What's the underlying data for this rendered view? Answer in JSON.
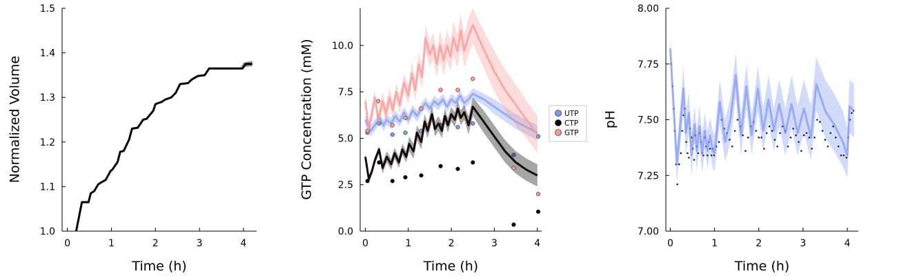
{
  "chart_data": [
    {
      "id": "volume",
      "type": "line",
      "title": "",
      "xlabel": "Time (h)",
      "ylabel": "Normalized Volume",
      "xlim": [
        -0.12,
        4.3
      ],
      "ylim": [
        1.0,
        1.5
      ],
      "xticks": [
        0,
        1,
        2,
        3,
        4
      ],
      "yticks": [
        1.0,
        1.1,
        1.2,
        1.3,
        1.4,
        1.5
      ],
      "ytick_labels": [
        "1.0",
        "1.1",
        "1.2",
        "1.3",
        "1.4",
        "1.5"
      ],
      "grid": false,
      "colors": {
        "line": "#000000",
        "band": "#7f7f7f"
      },
      "series": [
        {
          "kind": "line",
          "x": [
            0.0,
            0.2,
            0.33,
            0.48,
            0.53,
            0.61,
            0.7,
            0.78,
            0.87,
            0.98,
            1.02,
            1.14,
            1.2,
            1.28,
            1.4,
            1.47,
            1.6,
            1.72,
            1.8,
            1.95,
            2.0,
            2.14,
            2.22,
            2.36,
            2.46,
            2.56,
            2.74,
            2.82,
            2.96,
            3.12,
            3.22,
            3.42,
            3.62,
            3.82,
            3.98,
            4.05,
            4.2
          ],
          "y": [
            0.98,
            1.0,
            1.065,
            1.065,
            1.085,
            1.09,
            1.105,
            1.11,
            1.115,
            1.135,
            1.138,
            1.155,
            1.178,
            1.18,
            1.205,
            1.23,
            1.232,
            1.25,
            1.252,
            1.27,
            1.285,
            1.29,
            1.295,
            1.3,
            1.31,
            1.33,
            1.332,
            1.34,
            1.348,
            1.35,
            1.365,
            1.365,
            1.365,
            1.365,
            1.365,
            1.375,
            1.375
          ],
          "band_x": [
            3.92,
            4.0,
            4.2
          ],
          "band_lower": [
            1.365,
            1.368,
            1.37
          ],
          "band_upper": [
            1.365,
            1.378,
            1.382
          ]
        }
      ]
    },
    {
      "id": "concentration",
      "type": "line",
      "title": "",
      "xlabel": "Time (h)",
      "ylabel": "GTP Concentration (mM)",
      "xlim": [
        -0.12,
        4.1
      ],
      "ylim": [
        0.0,
        12.0
      ],
      "xticks": [
        0,
        1,
        2,
        3,
        4
      ],
      "yticks": [
        0.0,
        2.5,
        5.0,
        7.5,
        10.0
      ],
      "ytick_labels": [
        "0.0",
        "2.5",
        "5.0",
        "7.5",
        "10.0"
      ],
      "grid": false,
      "legend": {
        "position": "right",
        "entries": [
          "UTP",
          "CTP",
          "GTP"
        ]
      },
      "colors": {
        "UTP": "#8097f0",
        "CTP": "#000000",
        "GTP": "#f59a9a"
      },
      "series": [
        {
          "name": "UTP",
          "kind": "line",
          "x": [
            0.0,
            0.12,
            0.25,
            0.33,
            0.42,
            0.5,
            0.6,
            0.7,
            0.8,
            0.9,
            1.0,
            1.1,
            1.2,
            1.3,
            1.4,
            1.5,
            1.6,
            1.7,
            1.8,
            1.9,
            2.0,
            2.1,
            2.2,
            2.3,
            2.4,
            2.5,
            2.75,
            3.0,
            3.25,
            3.5,
            3.75,
            4.0
          ],
          "y": [
            6.0,
            5.4,
            5.8,
            6.1,
            5.7,
            6.0,
            5.8,
            6.2,
            5.9,
            6.4,
            6.0,
            6.5,
            6.2,
            6.6,
            6.9,
            6.6,
            7.0,
            6.8,
            7.1,
            6.7,
            7.1,
            6.9,
            7.3,
            6.9,
            7.1,
            7.4,
            7.1,
            6.7,
            6.3,
            5.9,
            5.6,
            5.3
          ],
          "band_lower": [
            5.7,
            5.1,
            5.5,
            5.8,
            5.4,
            5.7,
            5.5,
            5.9,
            5.6,
            6.1,
            5.7,
            6.2,
            5.9,
            6.3,
            6.6,
            6.3,
            6.7,
            6.5,
            6.8,
            6.4,
            6.8,
            6.6,
            7.0,
            6.6,
            6.8,
            7.1,
            6.8,
            6.3,
            5.9,
            5.5,
            5.2,
            4.9
          ],
          "band_upper": [
            6.3,
            5.7,
            6.1,
            6.4,
            6.0,
            6.3,
            6.1,
            6.5,
            6.2,
            6.7,
            6.3,
            6.8,
            6.5,
            6.9,
            7.2,
            6.9,
            7.3,
            7.1,
            7.4,
            7.0,
            7.4,
            7.2,
            7.6,
            7.2,
            7.4,
            7.7,
            7.4,
            7.1,
            6.7,
            6.3,
            6.0,
            5.7
          ],
          "points_x": [
            0.05,
            0.32,
            0.63,
            0.93,
            1.3,
            1.75,
            2.15,
            2.5,
            3.45,
            4.02
          ],
          "points_y": [
            5.3,
            5.8,
            5.2,
            5.3,
            5.4,
            5.7,
            5.6,
            5.8,
            4.1,
            5.1
          ]
        },
        {
          "name": "CTP",
          "kind": "line",
          "x": [
            0.0,
            0.08,
            0.15,
            0.22,
            0.32,
            0.4,
            0.5,
            0.6,
            0.68,
            0.78,
            0.86,
            0.95,
            1.02,
            1.12,
            1.2,
            1.3,
            1.38,
            1.45,
            1.55,
            1.62,
            1.7,
            1.78,
            1.85,
            1.92,
            2.0,
            2.08,
            2.15,
            2.22,
            2.3,
            2.4,
            2.5,
            2.75,
            3.0,
            3.25,
            3.5,
            3.75,
            4.0
          ],
          "y": [
            4.0,
            2.8,
            3.2,
            3.8,
            4.4,
            3.4,
            4.0,
            3.6,
            4.2,
            3.7,
            4.4,
            4.0,
            4.7,
            4.3,
            5.3,
            4.8,
            5.9,
            5.4,
            6.3,
            5.5,
            5.8,
            5.4,
            6.2,
            5.7,
            6.3,
            6.0,
            6.6,
            6.1,
            6.4,
            5.7,
            6.7,
            5.9,
            5.1,
            4.3,
            3.7,
            3.3,
            3.0
          ],
          "band_lower": [
            3.8,
            2.6,
            3.0,
            3.6,
            4.2,
            3.1,
            3.7,
            3.3,
            3.9,
            3.4,
            4.1,
            3.7,
            4.3,
            3.9,
            4.9,
            4.4,
            5.5,
            5.0,
            5.9,
            5.1,
            5.4,
            5.0,
            5.8,
            5.3,
            5.9,
            5.6,
            6.2,
            5.7,
            6.0,
            5.2,
            6.2,
            5.3,
            4.5,
            3.7,
            3.1,
            2.7,
            2.4
          ],
          "band_upper": [
            4.2,
            3.0,
            3.4,
            4.0,
            4.6,
            3.7,
            4.3,
            3.9,
            4.5,
            4.0,
            4.7,
            4.3,
            5.1,
            4.7,
            5.7,
            5.2,
            6.3,
            5.8,
            6.7,
            5.9,
            6.2,
            5.8,
            6.6,
            6.1,
            6.7,
            6.4,
            7.0,
            6.5,
            6.8,
            6.2,
            7.2,
            6.5,
            5.7,
            4.9,
            4.3,
            3.9,
            3.6
          ],
          "points_x": [
            0.05,
            0.32,
            0.63,
            0.93,
            1.3,
            1.75,
            2.15,
            2.5,
            3.45,
            4.02
          ],
          "points_y": [
            2.7,
            3.7,
            2.7,
            2.9,
            3.0,
            3.5,
            3.35,
            3.7,
            0.35,
            1.05
          ]
        },
        {
          "name": "GTP",
          "kind": "line",
          "x": [
            0.0,
            0.08,
            0.15,
            0.22,
            0.3,
            0.4,
            0.48,
            0.56,
            0.64,
            0.72,
            0.8,
            0.9,
            1.0,
            1.08,
            1.16,
            1.24,
            1.32,
            1.4,
            1.5,
            1.58,
            1.66,
            1.74,
            1.82,
            1.9,
            1.98,
            2.05,
            2.14,
            2.22,
            2.3,
            2.4,
            2.5,
            2.75,
            3.0,
            3.25,
            3.5,
            3.75,
            4.0
          ],
          "y": [
            7.0,
            5.5,
            6.3,
            7.2,
            6.0,
            7.0,
            6.3,
            7.2,
            6.5,
            7.5,
            6.8,
            8.0,
            7.3,
            8.5,
            7.6,
            9.0,
            8.3,
            10.4,
            9.5,
            10.0,
            9.0,
            10.0,
            9.2,
            10.0,
            9.4,
            10.4,
            9.7,
            10.8,
            9.7,
            10.5,
            11.1,
            9.8,
            8.6,
            7.6,
            6.8,
            6.0,
            5.2
          ],
          "band_lower": [
            6.6,
            5.1,
            5.9,
            6.8,
            5.6,
            6.5,
            5.8,
            6.7,
            6.0,
            7.0,
            6.3,
            7.5,
            6.8,
            7.9,
            7.0,
            8.4,
            7.7,
            9.7,
            8.8,
            9.3,
            8.3,
            9.2,
            8.4,
            9.2,
            8.6,
            9.5,
            8.8,
            9.9,
            8.8,
            9.5,
            10.1,
            8.8,
            7.5,
            6.5,
            5.7,
            5.0,
            4.2
          ],
          "band_upper": [
            7.4,
            5.9,
            6.7,
            7.6,
            6.4,
            7.5,
            6.8,
            7.7,
            7.0,
            8.0,
            7.3,
            8.5,
            7.8,
            9.1,
            8.2,
            9.6,
            8.9,
            11.1,
            10.2,
            10.7,
            9.7,
            10.8,
            10.0,
            10.8,
            10.2,
            11.3,
            10.6,
            11.7,
            10.6,
            11.5,
            12.0,
            10.8,
            9.7,
            8.7,
            7.9,
            7.0,
            6.2
          ],
          "points_x": [
            0.05,
            0.3,
            0.63,
            0.93,
            1.3,
            1.75,
            2.15,
            2.5,
            3.45,
            4.02
          ],
          "points_y": [
            5.4,
            7.0,
            5.7,
            6.1,
            6.6,
            7.6,
            7.6,
            8.2,
            3.4,
            2.0
          ]
        }
      ]
    },
    {
      "id": "ph",
      "type": "line",
      "title": "",
      "xlabel": "Time (h)",
      "ylabel": "pH",
      "xlim": [
        -0.1,
        4.25
      ],
      "ylim": [
        7.0,
        8.0
      ],
      "xticks": [
        0,
        1,
        2,
        3,
        4
      ],
      "yticks": [
        7.0,
        7.25,
        7.5,
        7.75,
        8.0
      ],
      "ytick_labels": [
        "7.00",
        "7.25",
        "7.50",
        "7.75",
        "8.00"
      ],
      "grid": false,
      "colors": {
        "line": "#8097f0",
        "points": "#222222"
      },
      "series": [
        {
          "kind": "line",
          "x": [
            0.0,
            0.15,
            0.3,
            0.35,
            0.42,
            0.48,
            0.55,
            0.6,
            0.66,
            0.72,
            0.78,
            0.84,
            0.9,
            0.96,
            1.0,
            1.12,
            1.24,
            1.36,
            1.48,
            1.6,
            1.72,
            1.84,
            1.98,
            2.1,
            2.22,
            2.34,
            2.46,
            2.6,
            2.74,
            2.88,
            3.02,
            3.18,
            3.3,
            3.5,
            3.7,
            3.9,
            4.0,
            4.05,
            4.15
          ],
          "y": [
            7.82,
            7.3,
            7.64,
            7.44,
            7.53,
            7.34,
            7.48,
            7.36,
            7.47,
            7.35,
            7.45,
            7.36,
            7.43,
            7.36,
            7.35,
            7.58,
            7.4,
            7.5,
            7.7,
            7.43,
            7.65,
            7.43,
            7.64,
            7.45,
            7.59,
            7.45,
            7.57,
            7.44,
            7.57,
            7.44,
            7.55,
            7.42,
            7.66,
            7.54,
            7.48,
            7.4,
            7.34,
            7.56,
            7.54
          ],
          "band_lower": [
            7.77,
            7.22,
            7.54,
            7.34,
            7.44,
            7.25,
            7.4,
            7.27,
            7.38,
            7.26,
            7.37,
            7.28,
            7.35,
            7.28,
            7.27,
            7.48,
            7.31,
            7.4,
            7.6,
            7.34,
            7.55,
            7.34,
            7.54,
            7.36,
            7.49,
            7.36,
            7.47,
            7.34,
            7.46,
            7.34,
            7.44,
            7.32,
            7.54,
            7.42,
            7.36,
            7.29,
            7.24,
            7.44,
            7.42
          ],
          "band_upper": [
            7.87,
            7.38,
            7.74,
            7.54,
            7.62,
            7.44,
            7.56,
            7.45,
            7.56,
            7.44,
            7.53,
            7.45,
            7.51,
            7.45,
            7.43,
            7.68,
            7.5,
            7.6,
            7.8,
            7.52,
            7.75,
            7.52,
            7.74,
            7.55,
            7.7,
            7.55,
            7.68,
            7.55,
            7.7,
            7.56,
            7.68,
            7.56,
            7.78,
            7.68,
            7.62,
            7.54,
            7.46,
            7.68,
            7.66
          ],
          "points_x": [
            0.02,
            0.05,
            0.08,
            0.1,
            0.13,
            0.16,
            0.2,
            0.24,
            0.27,
            0.3,
            0.33,
            0.36,
            0.39,
            0.42,
            0.45,
            0.48,
            0.51,
            0.54,
            0.57,
            0.6,
            0.63,
            0.66,
            0.69,
            0.72,
            0.75,
            0.78,
            0.81,
            0.84,
            0.87,
            0.9,
            0.93,
            0.96,
            0.99,
            1.04,
            1.1,
            1.16,
            1.22,
            1.28,
            1.34,
            1.4,
            1.46,
            1.52,
            1.58,
            1.64,
            1.7,
            1.76,
            1.82,
            1.88,
            1.94,
            2.0,
            2.06,
            2.12,
            2.18,
            2.24,
            2.3,
            2.36,
            2.42,
            2.48,
            2.54,
            2.6,
            2.66,
            2.72,
            2.78,
            2.84,
            2.9,
            2.96,
            3.02,
            3.08,
            3.14,
            3.2,
            3.26,
            3.32,
            3.38,
            3.44,
            3.5,
            3.56,
            3.62,
            3.68,
            3.74,
            3.8,
            3.86,
            3.92,
            3.98,
            4.02,
            4.06,
            4.1,
            4.14
          ],
          "points_y": [
            7.75,
            7.65,
            7.55,
            7.45,
            7.3,
            7.21,
            7.3,
            7.35,
            7.45,
            7.52,
            7.55,
            7.4,
            7.35,
            7.33,
            7.46,
            7.42,
            7.37,
            7.32,
            7.43,
            7.38,
            7.35,
            7.44,
            7.4,
            7.35,
            7.34,
            7.42,
            7.38,
            7.34,
            7.4,
            7.37,
            7.34,
            7.37,
            7.34,
            7.38,
            7.4,
            7.5,
            7.46,
            7.44,
            7.41,
            7.38,
            7.45,
            7.5,
            7.47,
            7.43,
            7.36,
            7.42,
            7.47,
            7.49,
            7.45,
            7.42,
            7.42,
            7.37,
            7.44,
            7.47,
            7.45,
            7.41,
            7.38,
            7.44,
            7.47,
            7.45,
            7.38,
            7.42,
            7.46,
            7.43,
            7.4,
            7.36,
            7.43,
            7.44,
            7.42,
            7.37,
            7.42,
            7.5,
            7.49,
            7.45,
            7.41,
            7.38,
            7.44,
            7.47,
            7.42,
            7.38,
            7.34,
            7.34,
            7.33,
            7.42,
            7.5,
            7.53,
            7.54
          ]
        }
      ]
    }
  ]
}
